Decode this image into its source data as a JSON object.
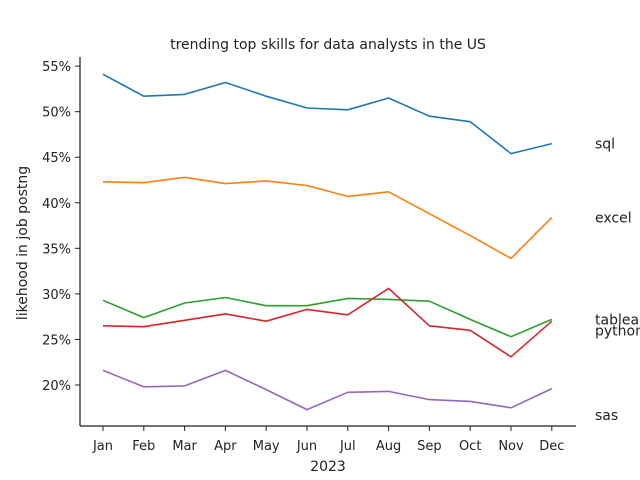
{
  "chart_data": {
    "type": "line",
    "title": "trending top skills for data analysts in the US",
    "xlabel": "2023",
    "ylabel": "likehood in job postng",
    "categories": [
      "Jan",
      "Feb",
      "Mar",
      "Apr",
      "May",
      "Jun",
      "Jul",
      "Aug",
      "Sep",
      "Oct",
      "Nov",
      "Dec"
    ],
    "ylim": [
      15.5,
      56
    ],
    "yticks": [
      20,
      25,
      30,
      35,
      40,
      45,
      50,
      55
    ],
    "ytick_format": "%",
    "grid": false,
    "legend": "none; series names printed at right end of each line",
    "series": [
      {
        "name": "sql",
        "color": "#1f77b4",
        "values": [
          54.1,
          51.7,
          51.9,
          53.2,
          51.7,
          50.4,
          50.2,
          51.5,
          49.5,
          48.9,
          45.4,
          46.5
        ]
      },
      {
        "name": "excel",
        "color": "#ff7f0e",
        "values": [
          42.3,
          42.2,
          42.8,
          42.1,
          42.4,
          41.9,
          40.7,
          41.2,
          38.8,
          36.4,
          33.9,
          38.4
        ]
      },
      {
        "name": "tableau",
        "color": "#2ca02c",
        "values": [
          29.3,
          27.4,
          29.0,
          29.6,
          28.7,
          28.7,
          29.5,
          29.4,
          29.2,
          27.2,
          25.3,
          27.2
        ]
      },
      {
        "name": "python",
        "color": "#d62728",
        "values": [
          26.5,
          26.4,
          27.1,
          27.8,
          27.0,
          28.3,
          27.7,
          30.6,
          26.5,
          26.0,
          23.1,
          27.0
        ]
      },
      {
        "name": "sas",
        "color": "#9467bd",
        "values": [
          21.6,
          19.8,
          19.9,
          21.6,
          19.5,
          17.3,
          19.2,
          19.3,
          18.4,
          18.2,
          17.5,
          19.6
        ]
      }
    ],
    "series_labels": [
      {
        "text": "sql",
        "y": 46.5
      },
      {
        "text": "excel",
        "y": 38.4
      },
      {
        "text": "tableau",
        "y": 27.2
      },
      {
        "text": "python",
        "y": 26.0
      },
      {
        "text": "sas",
        "y": 16.7
      }
    ]
  }
}
